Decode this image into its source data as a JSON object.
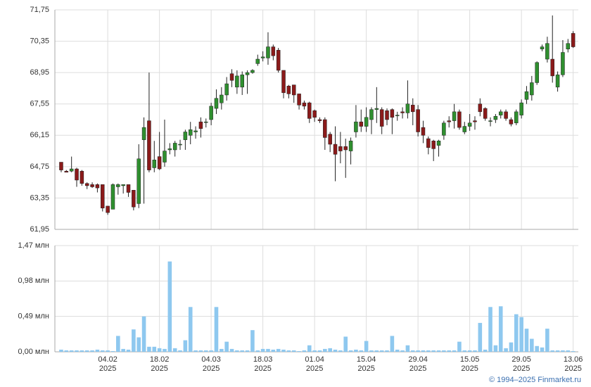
{
  "chart_data": [
    {
      "type": "candlestick",
      "grid": true,
      "up_color": "#2f8f2f",
      "down_color": "#8b1a1a",
      "ylim": [
        61.95,
        71.75
      ],
      "yticks": [
        {
          "value": 61.95,
          "label": "61,95"
        },
        {
          "value": 63.35,
          "label": "63,35"
        },
        {
          "value": 64.75,
          "label": "64,75"
        },
        {
          "value": 66.15,
          "label": "66,15"
        },
        {
          "value": 67.55,
          "label": "67,55"
        },
        {
          "value": 68.95,
          "label": "68,95"
        },
        {
          "value": 70.35,
          "label": "70,35"
        },
        {
          "value": 71.75,
          "label": "71,75"
        }
      ],
      "open": [
        64.95,
        64.55,
        64.55,
        64.65,
        64.55,
        64.0,
        63.95,
        63.95,
        63.95,
        62.99,
        62.85,
        63.85,
        63.9,
        63.95,
        63.7,
        63.1,
        65.95,
        66.8,
        64.7,
        65.2,
        64.95,
        65.5,
        65.5,
        65.75,
        65.95,
        66.15,
        66.3,
        66.75,
        66.75,
        66.85,
        67.35,
        67.6,
        67.95,
        68.9,
        68.3,
        68.3,
        68.85,
        68.95,
        69.35,
        69.6,
        69.6,
        70.1,
        69.95,
        69.05,
        68.35,
        68.4,
        68.0,
        67.6,
        67.6,
        67.25,
        66.85,
        66.85,
        66.2,
        65.75,
        65.65,
        65.65,
        65.45,
        66.3,
        66.75,
        66.55,
        66.85,
        67.3,
        67.3,
        67.25,
        67.3,
        67.05,
        67.2,
        67.15,
        67.5,
        67.3,
        66.5,
        66.0,
        65.9,
        65.7,
        66.15,
        66.8,
        66.8,
        67.2,
        66.3,
        66.55,
        66.8,
        67.55,
        67.35,
        66.8,
        66.85,
        67.05,
        67.2,
        66.85,
        66.7,
        67.05,
        67.75,
        67.95,
        68.5,
        70.0,
        69.55,
        69.55,
        68.3,
        68.85,
        70.0,
        70.7
      ],
      "high": [
        64.95,
        64.6,
        65.2,
        64.7,
        64.6,
        64.05,
        64.05,
        64.0,
        63.95,
        62.99,
        64.0,
        64.0,
        63.95,
        63.95,
        63.7,
        65.75,
        66.95,
        68.95,
        65.9,
        66.3,
        66.85,
        65.8,
        65.9,
        65.95,
        66.4,
        66.75,
        66.55,
        66.95,
        66.9,
        67.6,
        68.2,
        68.3,
        68.75,
        69.1,
        69.05,
        69.0,
        69.05,
        69.1,
        69.75,
        69.9,
        70.75,
        70.2,
        70.05,
        69.05,
        68.4,
        68.4,
        68.0,
        67.7,
        67.65,
        67.3,
        66.95,
        66.95,
        66.3,
        66.55,
        66.3,
        66.0,
        66.05,
        67.5,
        67.3,
        67.4,
        67.4,
        68.3,
        67.4,
        67.35,
        67.35,
        67.2,
        67.4,
        68.6,
        67.8,
        67.5,
        66.8,
        66.1,
        65.95,
        65.95,
        66.8,
        67.0,
        67.55,
        67.3,
        66.75,
        67.1,
        67.0,
        67.8,
        67.4,
        66.95,
        67.1,
        67.3,
        67.3,
        66.95,
        67.3,
        67.75,
        68.35,
        68.8,
        69.45,
        70.2,
        70.55,
        71.5,
        69.0,
        70.4,
        70.45,
        70.8
      ],
      "low": [
        64.5,
        64.5,
        64.5,
        63.85,
        63.9,
        63.75,
        63.8,
        63.6,
        62.75,
        62.6,
        62.85,
        63.5,
        63.55,
        63.4,
        62.8,
        62.9,
        63.1,
        64.5,
        64.5,
        64.6,
        64.75,
        65.3,
        65.2,
        65.5,
        65.5,
        65.75,
        66.0,
        66.05,
        66.5,
        66.6,
        67.1,
        67.3,
        67.7,
        68.3,
        68.0,
        67.95,
        68.0,
        68.9,
        69.25,
        69.45,
        69.3,
        69.5,
        68.95,
        67.8,
        67.8,
        67.6,
        67.3,
        67.3,
        66.7,
        66.75,
        66.7,
        65.5,
        65.4,
        64.1,
        64.9,
        64.25,
        64.85,
        66.05,
        66.3,
        66.3,
        66.2,
        66.7,
        66.2,
        66.6,
        66.2,
        66.8,
        66.9,
        66.9,
        66.6,
        66.1,
        65.8,
        65.3,
        65.0,
        65.2,
        65.95,
        66.5,
        66.45,
        66.4,
        66.2,
        66.35,
        66.4,
        67.0,
        66.8,
        66.55,
        66.7,
        66.9,
        66.8,
        66.55,
        66.6,
        66.9,
        67.55,
        67.7,
        68.4,
        69.9,
        69.4,
        68.5,
        68.1,
        68.75,
        69.85,
        70.05
      ],
      "close": [
        64.6,
        64.5,
        64.65,
        64.15,
        64.0,
        63.9,
        63.85,
        63.8,
        62.9,
        62.7,
        63.95,
        63.95,
        63.95,
        63.6,
        62.95,
        65.1,
        66.5,
        64.6,
        65.05,
        64.65,
        65.45,
        65.55,
        65.8,
        65.75,
        66.3,
        66.4,
        66.35,
        66.45,
        66.75,
        67.45,
        67.8,
        67.95,
        68.45,
        68.6,
        68.8,
        68.85,
        68.95,
        69.05,
        69.55,
        69.65,
        70.1,
        69.7,
        69.05,
        68.05,
        68.0,
        67.95,
        67.5,
        67.45,
        66.9,
        66.95,
        66.8,
        66.05,
        65.75,
        65.3,
        65.45,
        65.5,
        65.9,
        66.75,
        66.55,
        66.95,
        67.3,
        67.35,
        66.55,
        66.85,
        66.95,
        67.05,
        67.15,
        67.55,
        67.2,
        66.3,
        66.15,
        65.6,
        65.55,
        65.9,
        66.7,
        66.75,
        67.2,
        66.5,
        66.55,
        66.7,
        66.75,
        67.2,
        66.9,
        66.8,
        67.0,
        67.2,
        66.9,
        66.65,
        67.2,
        67.6,
        68.1,
        68.5,
        69.4,
        70.1,
        70.25,
        68.8,
        68.85,
        69.85,
        70.25,
        70.1
      ]
    },
    {
      "type": "bar",
      "grid": true,
      "color": "#8ec8ef",
      "ylim": [
        0,
        1.47
      ],
      "yticks": [
        {
          "value": 0,
          "label": "0,00 млн"
        },
        {
          "value": 0.49,
          "label": "0,49 млн"
        },
        {
          "value": 0.98,
          "label": "0,98 млн"
        },
        {
          "value": 1.47,
          "label": "1,47 млн"
        }
      ],
      "categories": [
        null,
        null,
        null,
        null,
        null,
        null,
        null,
        null,
        null,
        "04.02\n2025",
        null,
        null,
        null,
        null,
        null,
        null,
        null,
        null,
        null,
        "18.02\n2025",
        null,
        null,
        null,
        null,
        null,
        null,
        null,
        null,
        null,
        "04.03\n2025",
        null,
        null,
        null,
        null,
        null,
        null,
        null,
        null,
        null,
        "18.03\n2025",
        null,
        null,
        null,
        null,
        null,
        null,
        null,
        null,
        null,
        "01.04\n2025",
        null,
        null,
        null,
        null,
        null,
        null,
        null,
        null,
        null,
        "15.04\n2025",
        null,
        null,
        null,
        null,
        null,
        null,
        null,
        null,
        null,
        "29.04\n2025",
        null,
        null,
        null,
        null,
        null,
        null,
        null,
        null,
        null,
        "15.05\n2025",
        null,
        null,
        null,
        null,
        null,
        null,
        null,
        null,
        null,
        "29.05\n2025",
        null,
        null,
        null,
        null,
        null,
        null,
        null,
        null,
        null,
        "13.06\n2025"
      ],
      "values": [
        0.03,
        0.02,
        0.02,
        0.02,
        0.02,
        0.02,
        0.02,
        0.03,
        0.02,
        0.02,
        0.01,
        0.22,
        0.04,
        0.03,
        0.31,
        0.2,
        0.49,
        0.07,
        0.07,
        0.05,
        0.04,
        1.25,
        0.05,
        0.02,
        0.16,
        0.62,
        0.02,
        0.02,
        0.02,
        0.02,
        0.62,
        0.04,
        0.14,
        0.04,
        0.02,
        0.02,
        0.02,
        0.3,
        0.02,
        0.04,
        0.04,
        0.03,
        0.04,
        0.03,
        0.02,
        0.02,
        0.01,
        0.02,
        0.09,
        0.02,
        0.02,
        0.04,
        0.05,
        0.03,
        0.02,
        0.21,
        0.02,
        0.03,
        0.02,
        0.15,
        0.02,
        0.02,
        0.02,
        0.02,
        0.22,
        0.03,
        0.02,
        0.09,
        0.02,
        0.02,
        0.02,
        0.02,
        0.02,
        0.02,
        0.02,
        0.02,
        0.02,
        0.14,
        0.02,
        0.02,
        0.02,
        0.4,
        0.03,
        0.62,
        0.09,
        0.63,
        0.05,
        0.13,
        0.52,
        0.48,
        0.32,
        0.18,
        0.08,
        0.06,
        0.32,
        0.02,
        0.02,
        0.02,
        0.02,
        0.01
      ]
    }
  ],
  "footer": "© 1994–2025 Finmarket.ru"
}
